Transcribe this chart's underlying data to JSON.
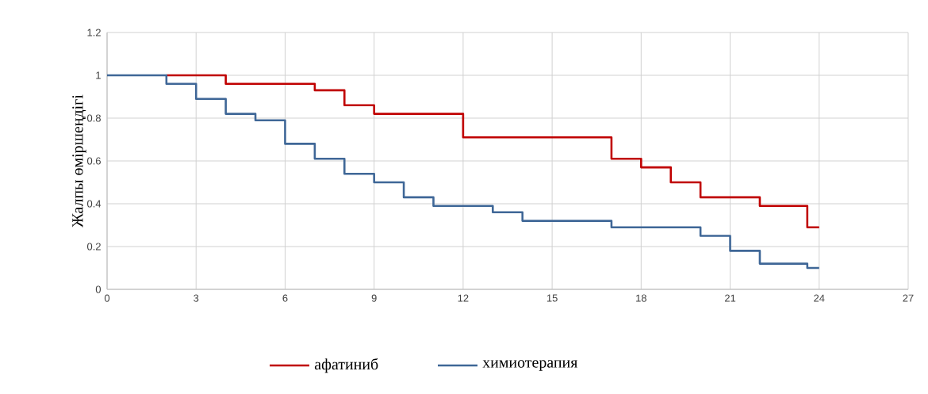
{
  "chart_data": {
    "type": "step",
    "ylabel": "Жалпы өміршеңдігі",
    "series": [
      {
        "name": "афатиниб",
        "color": "#c00000",
        "x": [
          2,
          4,
          7,
          8,
          9,
          12,
          17,
          18,
          19,
          20,
          22,
          23.6,
          24
        ],
        "values": [
          1,
          0.96,
          0.93,
          0.86,
          0.82,
          0.71,
          0.61,
          0.57,
          0.5,
          0.43,
          0.39,
          0.29,
          0.29
        ]
      },
      {
        "name": "химиотерапия",
        "color": "#3f6797",
        "x": [
          0,
          2,
          3,
          4,
          5,
          6,
          7,
          8,
          9,
          10,
          11,
          13,
          14,
          17,
          20,
          21,
          22,
          23.6,
          24
        ],
        "values": [
          1,
          0.96,
          0.89,
          0.82,
          0.79,
          0.68,
          0.61,
          0.54,
          0.5,
          0.43,
          0.39,
          0.36,
          0.32,
          0.29,
          0.25,
          0.18,
          0.12,
          0.1,
          0.1
        ]
      }
    ],
    "xlim": [
      0,
      27
    ],
    "xticks": [
      0,
      3,
      6,
      9,
      12,
      15,
      18,
      21,
      24,
      27
    ],
    "ylim": [
      0,
      1.2
    ],
    "yticks": [
      {
        "value": 0,
        "label": "0"
      },
      {
        "value": 0.2,
        "label": "0.2"
      },
      {
        "value": 0.4,
        "label": "0.4"
      },
      {
        "value": 0.6,
        "label": "0.6"
      },
      {
        "value": 0.8,
        "label": "0.8"
      },
      {
        "value": 1,
        "label": "1"
      },
      {
        "value": 1.2,
        "label": "1.2"
      }
    ],
    "grid": true,
    "legend": "bottom",
    "marker": "none",
    "line_style": "solid"
  }
}
